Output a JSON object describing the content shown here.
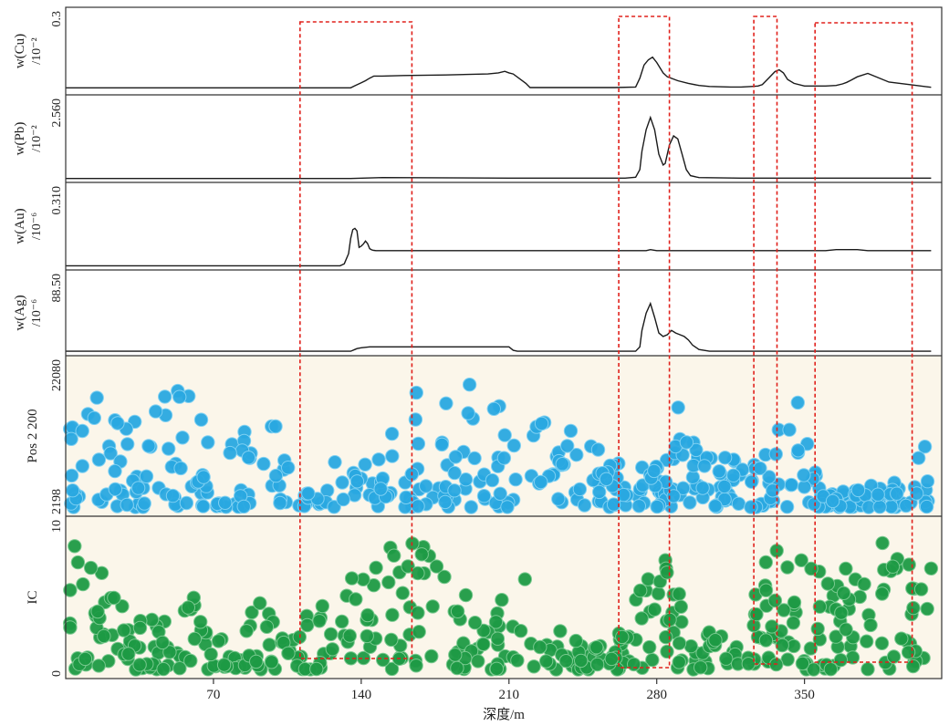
{
  "x_axis": {
    "label": "深度/m",
    "ticks": [
      "70",
      "140",
      "210",
      "280",
      "350"
    ],
    "tick_values": [
      70,
      140,
      210,
      280,
      350
    ],
    "range": [
      0,
      415
    ]
  },
  "panels": [
    {
      "id": "cu",
      "ylabel_elem": "w(Cu)",
      "ylabel_unit": "/10⁻²",
      "top_label": "0.3",
      "bottom_label": ""
    },
    {
      "id": "pb",
      "ylabel_elem": "w(Pb)",
      "ylabel_unit": "/10⁻²",
      "top_label": "2.560",
      "bottom_label": ""
    },
    {
      "id": "au",
      "ylabel_elem": "w(Au)",
      "ylabel_unit": "/10⁻⁶",
      "top_label": "0.310",
      "bottom_label": ""
    },
    {
      "id": "ag",
      "ylabel_elem": "w(Ag)",
      "ylabel_unit": "/10⁻⁶",
      "top_label": "88.50",
      "bottom_label": ""
    },
    {
      "id": "pos",
      "ylabel_elem": "Pos 2 200",
      "ylabel_unit": "",
      "top_label": "22080",
      "bottom_label": "2198"
    },
    {
      "id": "ic",
      "ylabel_elem": "IC",
      "ylabel_unit": "",
      "top_label": "10",
      "bottom_label": "0"
    }
  ],
  "highlight_boxes_depth": [
    [
      111,
      164
    ],
    [
      262,
      286
    ],
    [
      326,
      337
    ],
    [
      355,
      401
    ]
  ],
  "colors": {
    "line": "#1a1a1a",
    "highlight": "#e0201b",
    "pos_fill": "#29a8e0",
    "pos_edge": "#7fd0f2",
    "ic_fill": "#1e9a45",
    "ic_edge": "#79c98f",
    "scatter_bg": "#fbf6ea"
  },
  "chart_data": [
    {
      "type": "line",
      "panel": "cu",
      "ylabel": "w(Cu) /10⁻²",
      "ylim_top": 0.3,
      "x": [
        0,
        135,
        137,
        140,
        142,
        144,
        146,
        150,
        160,
        180,
        200,
        205,
        208,
        210,
        212,
        218,
        220,
        260,
        270,
        272,
        274,
        276,
        278,
        280,
        283,
        285,
        290,
        295,
        300,
        305,
        315,
        320,
        325,
        328,
        330,
        333,
        336,
        338,
        340,
        342,
        345,
        350,
        360,
        365,
        368,
        370,
        372,
        375,
        380,
        390,
        400,
        410
      ],
      "y": [
        0.013,
        0.013,
        0.021,
        0.032,
        0.04,
        0.05,
        0.058,
        0.058,
        0.06,
        0.062,
        0.066,
        0.07,
        0.076,
        0.07,
        0.066,
        0.03,
        0.014,
        0.014,
        0.016,
        0.05,
        0.1,
        0.12,
        0.13,
        0.11,
        0.07,
        0.055,
        0.04,
        0.03,
        0.022,
        0.018,
        0.016,
        0.016,
        0.018,
        0.02,
        0.025,
        0.05,
        0.075,
        0.082,
        0.07,
        0.045,
        0.03,
        0.02,
        0.02,
        0.022,
        0.028,
        0.034,
        0.042,
        0.055,
        0.068,
        0.035,
        0.025,
        0.015
      ]
    },
    {
      "type": "line",
      "panel": "pb",
      "ylabel": "w(Pb) /10⁻²",
      "ylim_top": 2.56,
      "x": [
        0,
        135,
        150,
        210,
        265,
        270,
        272,
        273,
        275,
        277,
        279,
        281,
        283,
        284,
        286,
        288,
        290,
        292,
        294,
        296,
        300,
        320,
        350,
        410
      ],
      "y": [
        0.01,
        0.01,
        0.04,
        0.02,
        0.02,
        0.05,
        0.3,
        0.9,
        1.6,
        2.0,
        1.6,
        0.8,
        0.45,
        0.5,
        1.1,
        1.4,
        1.3,
        0.8,
        0.3,
        0.1,
        0.04,
        0.02,
        0.02,
        0.02
      ]
    },
    {
      "type": "line",
      "panel": "au",
      "ylabel": "w(Au) /10⁻⁶",
      "ylim_top": 0.31,
      "x": [
        0,
        130,
        132,
        134,
        135,
        136,
        137,
        138,
        139,
        140,
        141,
        142,
        143,
        144,
        145,
        146,
        147,
        150,
        270,
        275,
        277,
        280,
        300,
        360,
        365,
        370,
        375,
        380,
        385,
        390,
        410
      ],
      "y": [
        0.002,
        0.002,
        0.01,
        0.05,
        0.11,
        0.145,
        0.15,
        0.14,
        0.075,
        0.08,
        0.088,
        0.1,
        0.09,
        0.07,
        0.065,
        0.063,
        0.062,
        0.062,
        0.062,
        0.062,
        0.066,
        0.062,
        0.062,
        0.062,
        0.066,
        0.066,
        0.066,
        0.062,
        0.062,
        0.062,
        0.062
      ]
    },
    {
      "type": "line",
      "panel": "ag",
      "ylabel": "w(Ag) /10⁻⁶",
      "ylim_top": 88.5,
      "x": [
        0,
        135,
        137,
        138,
        140,
        144,
        150,
        170,
        200,
        207,
        210,
        212,
        214,
        265,
        270,
        272,
        273,
        275,
        277,
        279,
        281,
        283,
        285,
        287,
        289,
        291,
        293,
        295,
        297,
        300,
        305,
        410
      ],
      "y": [
        1,
        1,
        3,
        4,
        5,
        6,
        6,
        6,
        6,
        6,
        6,
        2,
        1,
        1,
        1,
        6,
        25,
        45,
        56,
        40,
        22,
        18,
        20,
        25,
        22,
        20,
        18,
        14,
        8,
        3,
        1,
        1
      ]
    },
    {
      "type": "scatter",
      "panel": "pos",
      "ylabel": "Pos 2 200",
      "ylim": [
        2198,
        22080
      ]
    },
    {
      "type": "scatter",
      "panel": "ic",
      "ylabel": "IC",
      "ylim": [
        0,
        10
      ]
    }
  ]
}
